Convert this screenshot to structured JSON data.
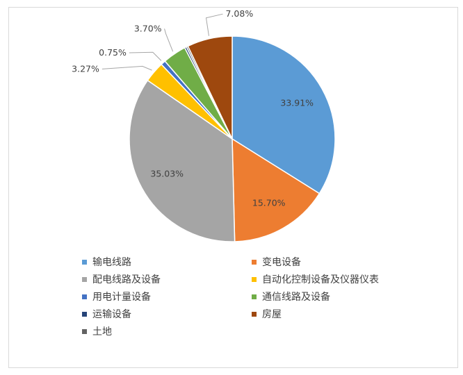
{
  "chart_data": {
    "type": "pie",
    "categories": [
      "输电线路",
      "变电设备",
      "配电线路及设备",
      "自动化控制设备及仪器仪表",
      "用电计量设备",
      "通信线路及设备",
      "运输设备",
      "土地",
      "房屋"
    ],
    "values": [
      33.91,
      15.7,
      35.03,
      3.27,
      0.75,
      3.7,
      0.3,
      0.26,
      7.08
    ],
    "labels": [
      "33.91%",
      "15.70%",
      "35.03%",
      "3.27%",
      "0.75%",
      "3.70%",
      "",
      "",
      "7.08%"
    ],
    "colors": [
      "#5b9bd5",
      "#ed7d31",
      "#a5a5a5",
      "#ffc000",
      "#4472c4",
      "#70ad47",
      "#264478",
      "#636363",
      "#9e480e"
    ],
    "legend_position": "bottom",
    "legend_order": [
      0,
      1,
      2,
      3,
      4,
      5,
      6,
      8,
      7
    ]
  }
}
